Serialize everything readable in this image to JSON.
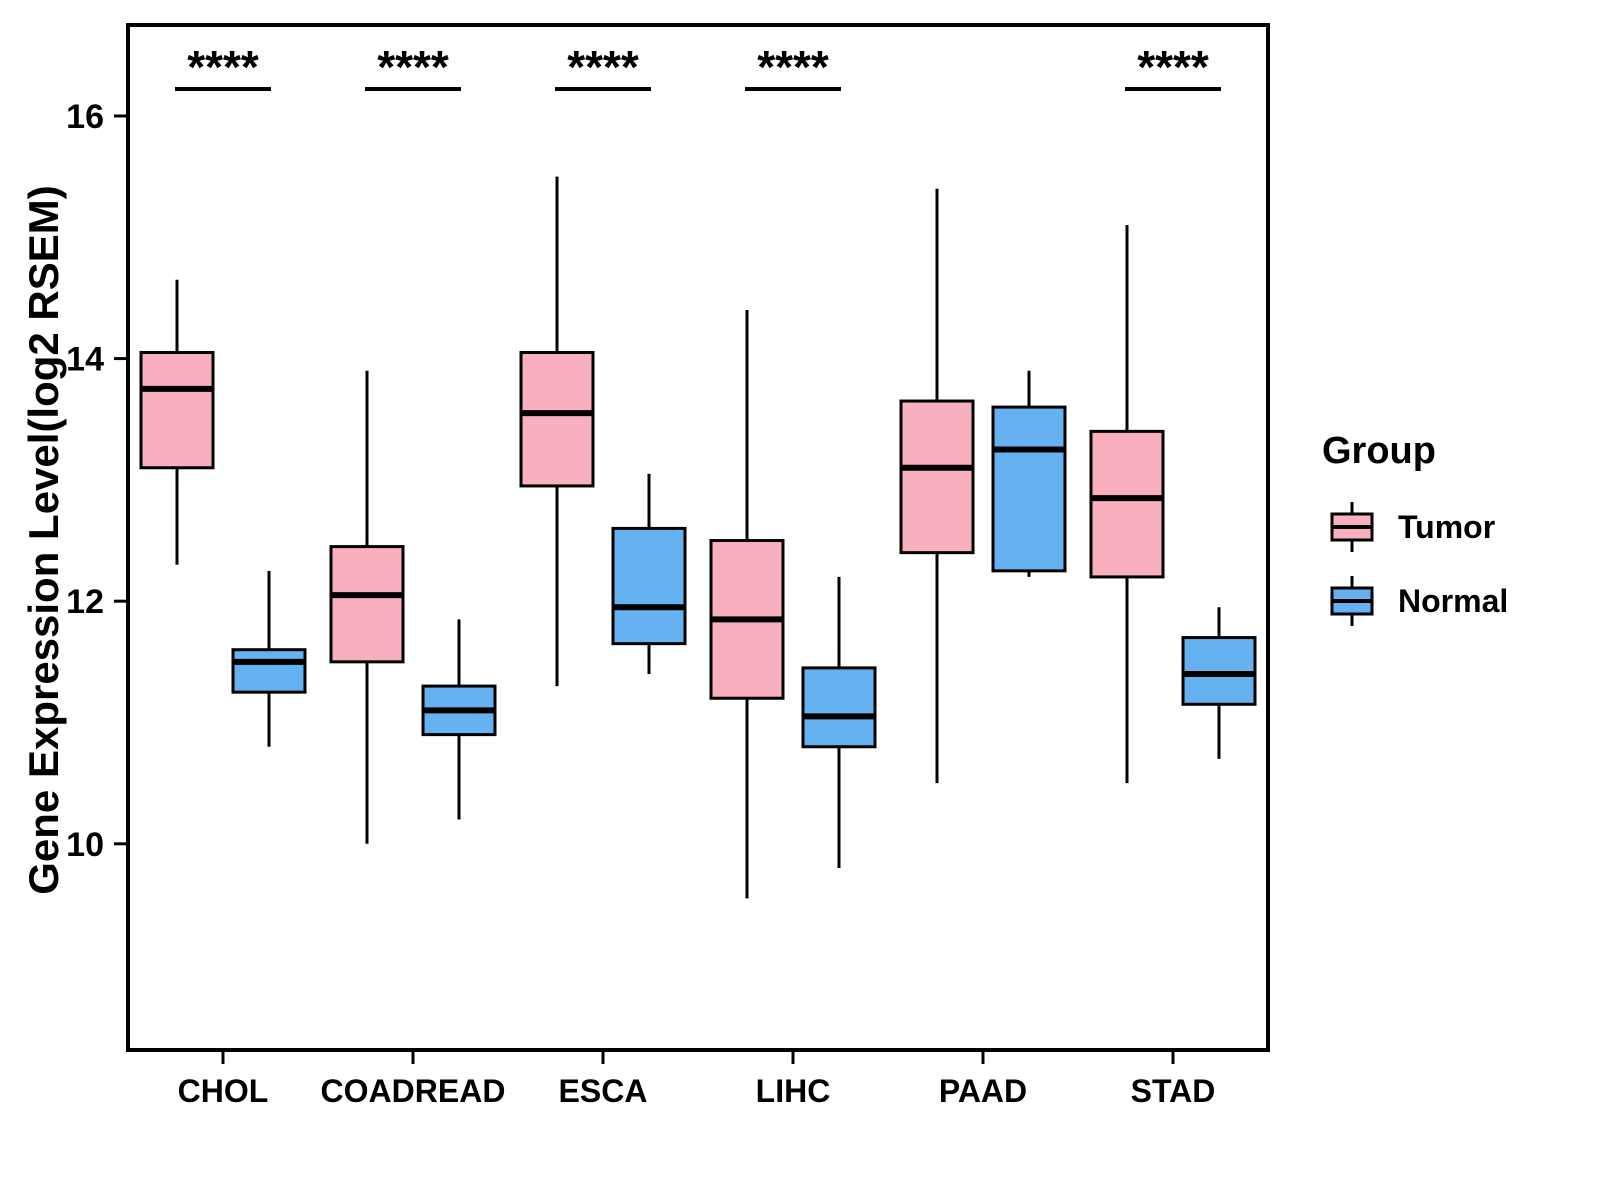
{
  "chart_data": {
    "type": "boxplot",
    "title": "",
    "xlabel": "",
    "ylabel": "Gene Expression Level(log2 RSEM)",
    "ylim": [
      8.3,
      16.75
    ],
    "yticks": [
      10,
      12,
      14,
      16
    ],
    "categories": [
      "CHOL",
      "COADREAD",
      "ESCA",
      "LIHC",
      "PAAD",
      "STAD"
    ],
    "grid": "off",
    "legend_position": "right",
    "legend": {
      "title": "Group",
      "entries": [
        {
          "label": "Tumor",
          "color": "#F8AFBE"
        },
        {
          "label": "Normal",
          "color": "#66B2F0"
        }
      ]
    },
    "significance": [
      "****",
      "****",
      "****",
      "****",
      null,
      "****"
    ],
    "series": [
      {
        "name": "Tumor",
        "color": "#F8AFBE",
        "boxes": [
          {
            "category": "CHOL",
            "whisker_low": 12.3,
            "q1": 13.1,
            "median": 13.75,
            "q3": 14.05,
            "whisker_high": 14.65
          },
          {
            "category": "COADREAD",
            "whisker_low": 10.0,
            "q1": 11.5,
            "median": 12.05,
            "q3": 12.45,
            "whisker_high": 13.9
          },
          {
            "category": "ESCA",
            "whisker_low": 11.3,
            "q1": 12.95,
            "median": 13.55,
            "q3": 14.05,
            "whisker_high": 15.5
          },
          {
            "category": "LIHC",
            "whisker_low": 9.55,
            "q1": 11.2,
            "median": 11.85,
            "q3": 12.5,
            "whisker_high": 14.4
          },
          {
            "category": "PAAD",
            "whisker_low": 10.5,
            "q1": 12.4,
            "median": 13.1,
            "q3": 13.65,
            "whisker_high": 15.4
          },
          {
            "category": "STAD",
            "whisker_low": 10.5,
            "q1": 12.2,
            "median": 12.85,
            "q3": 13.4,
            "whisker_high": 15.1
          }
        ]
      },
      {
        "name": "Normal",
        "color": "#66B2F0",
        "boxes": [
          {
            "category": "CHOL",
            "whisker_low": 10.8,
            "q1": 11.25,
            "median": 11.5,
            "q3": 11.6,
            "whisker_high": 12.25
          },
          {
            "category": "COADREAD",
            "whisker_low": 10.2,
            "q1": 10.9,
            "median": 11.1,
            "q3": 11.3,
            "whisker_high": 11.85
          },
          {
            "category": "ESCA",
            "whisker_low": 11.4,
            "q1": 11.65,
            "median": 11.95,
            "q3": 12.6,
            "whisker_high": 13.05
          },
          {
            "category": "LIHC",
            "whisker_low": 9.8,
            "q1": 10.8,
            "median": 11.05,
            "q3": 11.45,
            "whisker_high": 12.2
          },
          {
            "category": "PAAD",
            "whisker_low": 12.2,
            "q1": 12.25,
            "median": 13.25,
            "q3": 13.6,
            "whisker_high": 13.9
          },
          {
            "category": "STAD",
            "whisker_low": 10.7,
            "q1": 11.15,
            "median": 11.4,
            "q3": 11.7,
            "whisker_high": 11.95
          }
        ]
      }
    ]
  }
}
